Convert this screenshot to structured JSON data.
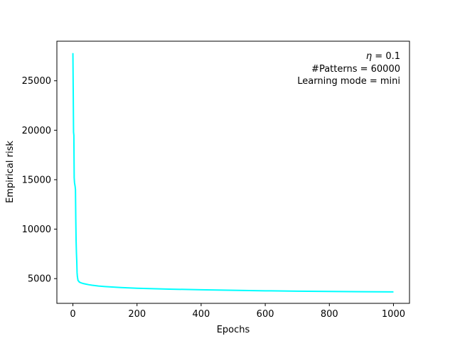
{
  "chart_data": {
    "type": "line",
    "title": "",
    "xlabel": "Epochs",
    "ylabel": "Empirical risk",
    "xlim": [
      -50,
      1050
    ],
    "ylim": [
      2500,
      29000
    ],
    "grid": false,
    "x_ticks": [
      0,
      200,
      400,
      600,
      800,
      1000
    ],
    "y_ticks": [
      5000,
      10000,
      15000,
      20000,
      25000
    ],
    "annotations": {
      "eta_symbol": "η",
      "eta_value": " = 0.1",
      "patterns": "#Patterns = 60000",
      "mode": "Learning mode = mini"
    },
    "series": [
      {
        "color": "#00ffff",
        "x": [
          0,
          1,
          2,
          3,
          4,
          5,
          6,
          7,
          8,
          9,
          10,
          11,
          12,
          13,
          14,
          15,
          16,
          18,
          20,
          25,
          30,
          40,
          50,
          60,
          80,
          100,
          150,
          200,
          250,
          300,
          400,
          500,
          600,
          700,
          800,
          900,
          1000
        ],
        "y": [
          27800,
          24000,
          19800,
          19500,
          15200,
          14700,
          14500,
          14300,
          14000,
          11000,
          8800,
          7600,
          6800,
          5600,
          5200,
          5000,
          4800,
          4750,
          4650,
          4580,
          4520,
          4450,
          4380,
          4330,
          4250,
          4200,
          4100,
          4030,
          3980,
          3940,
          3870,
          3820,
          3770,
          3730,
          3700,
          3680,
          3660
        ]
      }
    ]
  }
}
